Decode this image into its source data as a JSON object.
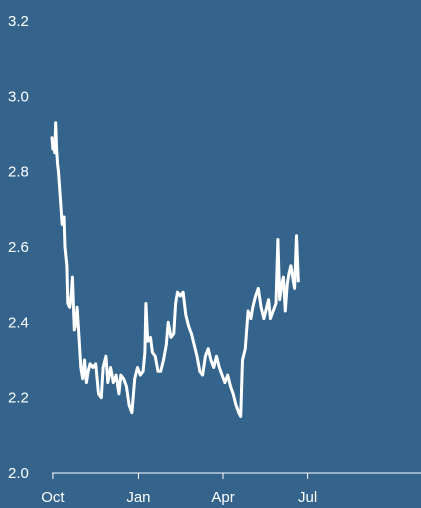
{
  "colors": {
    "background": "#34648b",
    "line": "#ffffff",
    "axis": "#ffffff"
  },
  "chart_data": {
    "type": "line",
    "title": "",
    "xlabel": "",
    "ylabel": "",
    "grid": false,
    "x_range": [
      "2023-09-30",
      "2024-10-31"
    ],
    "ylim": [
      2.0,
      3.2
    ],
    "y_ticks": [
      {
        "value": 2.0,
        "label": "2.0"
      },
      {
        "value": 2.2,
        "label": "2.2"
      },
      {
        "value": 2.4,
        "label": "2.4"
      },
      {
        "value": 2.6,
        "label": "2.6"
      },
      {
        "value": 2.8,
        "label": "2.8"
      },
      {
        "value": 3.0,
        "label": "3.0"
      },
      {
        "value": 3.2,
        "label": "3.2"
      }
    ],
    "x_ticks": [
      {
        "date": "2023-10-01",
        "label": "Oct"
      },
      {
        "date": "2024-01-01",
        "label": "Jan"
      },
      {
        "date": "2024-04-01",
        "label": "Apr"
      },
      {
        "date": "2024-07-01",
        "label": "Jul"
      }
    ],
    "series": [
      {
        "points": [
          [
            "2023-09-30",
            2.89
          ],
          [
            "2023-10-01",
            2.86
          ],
          [
            "2023-10-02",
            2.87
          ],
          [
            "2023-10-03",
            2.85
          ],
          [
            "2023-10-04",
            2.93
          ],
          [
            "2023-10-05",
            2.86
          ],
          [
            "2023-10-06",
            2.82
          ],
          [
            "2023-10-07",
            2.8
          ],
          [
            "2023-10-09",
            2.73
          ],
          [
            "2023-10-11",
            2.66
          ],
          [
            "2023-10-13",
            2.68
          ],
          [
            "2023-10-14",
            2.6
          ],
          [
            "2023-10-16",
            2.55
          ],
          [
            "2023-10-17",
            2.45
          ],
          [
            "2023-10-19",
            2.44
          ],
          [
            "2023-10-21",
            2.48
          ],
          [
            "2023-10-22",
            2.52
          ],
          [
            "2023-10-24",
            2.38
          ],
          [
            "2023-10-26",
            2.4
          ],
          [
            "2023-10-27",
            2.44
          ],
          [
            "2023-10-29",
            2.36
          ],
          [
            "2023-10-31",
            2.28
          ],
          [
            "2023-11-02",
            2.25
          ],
          [
            "2023-11-04",
            2.3
          ],
          [
            "2023-11-06",
            2.24
          ],
          [
            "2023-11-08",
            2.27
          ],
          [
            "2023-11-10",
            2.29
          ],
          [
            "2023-11-13",
            2.28
          ],
          [
            "2023-11-16",
            2.29
          ],
          [
            "2023-11-19",
            2.21
          ],
          [
            "2023-11-22",
            2.2
          ],
          [
            "2023-11-24",
            2.28
          ],
          [
            "2023-11-27",
            2.31
          ],
          [
            "2023-11-29",
            2.24
          ],
          [
            "2023-12-02",
            2.28
          ],
          [
            "2023-12-05",
            2.24
          ],
          [
            "2023-12-08",
            2.26
          ],
          [
            "2023-12-11",
            2.21
          ],
          [
            "2023-12-13",
            2.26
          ],
          [
            "2023-12-16",
            2.25
          ],
          [
            "2023-12-19",
            2.23
          ],
          [
            "2023-12-22",
            2.18
          ],
          [
            "2023-12-25",
            2.16
          ],
          [
            "2023-12-28",
            2.25
          ],
          [
            "2023-12-31",
            2.28
          ],
          [
            "2024-01-03",
            2.26
          ],
          [
            "2024-01-06",
            2.27
          ],
          [
            "2024-01-08",
            2.32
          ],
          [
            "2024-01-09",
            2.45
          ],
          [
            "2024-01-11",
            2.35
          ],
          [
            "2024-01-14",
            2.36
          ],
          [
            "2024-01-16",
            2.32
          ],
          [
            "2024-01-19",
            2.31
          ],
          [
            "2024-01-22",
            2.27
          ],
          [
            "2024-01-25",
            2.27
          ],
          [
            "2024-01-28",
            2.3
          ],
          [
            "2024-01-31",
            2.34
          ],
          [
            "2024-02-02",
            2.4
          ],
          [
            "2024-02-05",
            2.36
          ],
          [
            "2024-02-08",
            2.37
          ],
          [
            "2024-02-10",
            2.45
          ],
          [
            "2024-02-12",
            2.48
          ],
          [
            "2024-02-15",
            2.47
          ],
          [
            "2024-02-18",
            2.48
          ],
          [
            "2024-02-21",
            2.42
          ],
          [
            "2024-02-24",
            2.39
          ],
          [
            "2024-02-27",
            2.37
          ],
          [
            "2024-03-01",
            2.34
          ],
          [
            "2024-03-04",
            2.31
          ],
          [
            "2024-03-07",
            2.27
          ],
          [
            "2024-03-10",
            2.26
          ],
          [
            "2024-03-13",
            2.31
          ],
          [
            "2024-03-16",
            2.33
          ],
          [
            "2024-03-19",
            2.3
          ],
          [
            "2024-03-22",
            2.28
          ],
          [
            "2024-03-25",
            2.31
          ],
          [
            "2024-03-28",
            2.28
          ],
          [
            "2024-03-31",
            2.26
          ],
          [
            "2024-04-03",
            2.24
          ],
          [
            "2024-04-06",
            2.26
          ],
          [
            "2024-04-09",
            2.23
          ],
          [
            "2024-04-12",
            2.21
          ],
          [
            "2024-04-15",
            2.18
          ],
          [
            "2024-04-18",
            2.16
          ],
          [
            "2024-04-20",
            2.15
          ],
          [
            "2024-04-22",
            2.3
          ],
          [
            "2024-04-25",
            2.33
          ],
          [
            "2024-04-28",
            2.43
          ],
          [
            "2024-05-01",
            2.41
          ],
          [
            "2024-05-03",
            2.44
          ],
          [
            "2024-05-06",
            2.47
          ],
          [
            "2024-05-09",
            2.49
          ],
          [
            "2024-05-12",
            2.44
          ],
          [
            "2024-05-15",
            2.41
          ],
          [
            "2024-05-17",
            2.43
          ],
          [
            "2024-05-20",
            2.46
          ],
          [
            "2024-05-22",
            2.41
          ],
          [
            "2024-05-25",
            2.43
          ],
          [
            "2024-05-28",
            2.45
          ],
          [
            "2024-05-30",
            2.62
          ],
          [
            "2024-06-01",
            2.46
          ],
          [
            "2024-06-03",
            2.5
          ],
          [
            "2024-06-05",
            2.52
          ],
          [
            "2024-06-07",
            2.43
          ],
          [
            "2024-06-09",
            2.5
          ],
          [
            "2024-06-11",
            2.53
          ],
          [
            "2024-06-13",
            2.55
          ],
          [
            "2024-06-15",
            2.52
          ],
          [
            "2024-06-17",
            2.49
          ],
          [
            "2024-06-19",
            2.63
          ],
          [
            "2024-06-21",
            2.51
          ]
        ]
      }
    ]
  }
}
